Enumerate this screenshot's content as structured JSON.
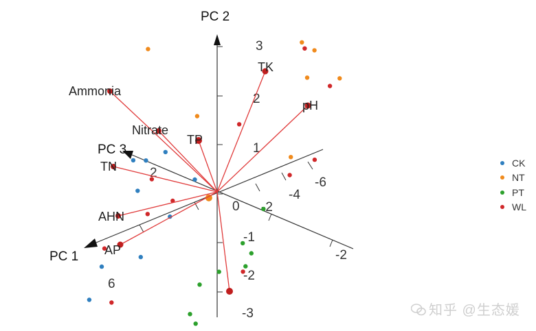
{
  "chart_data": {
    "type": "scatter",
    "subtype": "3d-pca-biplot",
    "axes": [
      {
        "name": "PC 1",
        "ticks": [
          "6",
          "2",
          "0",
          "-2"
        ]
      },
      {
        "name": "PC 2",
        "ticks": [
          "3",
          "2",
          "1",
          "0",
          "-1",
          "-2",
          "-3"
        ]
      },
      {
        "name": "PC 3",
        "ticks": [
          "2",
          "-2",
          "-4",
          "-6"
        ]
      }
    ],
    "legend": {
      "placement": "right",
      "entries": [
        {
          "name": "CK",
          "color": "#2f7fbf"
        },
        {
          "name": "NT",
          "color": "#f08a1c"
        },
        {
          "name": "PT",
          "color": "#2ca02c"
        },
        {
          "name": "WL",
          "color": "#d0282a"
        }
      ]
    },
    "loadings": [
      {
        "name": "TK"
      },
      {
        "name": "pH"
      },
      {
        "name": "Ammonia"
      },
      {
        "name": "Nitrate"
      },
      {
        "name": "TP"
      },
      {
        "name": "TN"
      },
      {
        "name": "AHN"
      },
      {
        "name": "AP"
      }
    ],
    "points": [
      {
        "group": "NT",
        "pc1": -3.1,
        "pc2": 2.4,
        "pc3": 6.2
      },
      {
        "group": "NT",
        "pc1": -1.3,
        "pc2": 1.7,
        "pc3": 7.5
      },
      {
        "group": "NT",
        "pc1": -1.0,
        "pc2": 0.9,
        "pc3": 3.4
      },
      {
        "group": "NT",
        "pc1": -3.2,
        "pc2": 1.6,
        "pc3": -0.1
      },
      {
        "group": "NT",
        "pc1": -2.3,
        "pc2": 2.7,
        "pc3": -1.5
      },
      {
        "group": "NT",
        "pc1": -2.4,
        "pc2": 2.6,
        "pc3": -2.2
      },
      {
        "group": "NT",
        "pc1": -2.5,
        "pc2": 2.2,
        "pc3": -3.8
      },
      {
        "group": "NT",
        "pc1": -1.8,
        "pc2": 0.5,
        "pc3": -1.7
      },
      {
        "group": "NT",
        "pc1": 0.2,
        "pc2": -0.1,
        "pc3": 0.2
      },
      {
        "group": "WL",
        "pc1": -2.3,
        "pc2": 2.6,
        "pc3": -1.7
      },
      {
        "group": "WL",
        "pc1": -2.2,
        "pc2": 2.1,
        "pc3": -3.7
      },
      {
        "group": "WL",
        "pc1": -1.7,
        "pc2": 0.7,
        "pc3": -3.6
      },
      {
        "group": "WL",
        "pc1": -1.0,
        "pc2": 1.1,
        "pc3": 0.4
      },
      {
        "group": "WL",
        "pc1": -1.0,
        "pc2": 0.5,
        "pc3": -3.2
      },
      {
        "group": "WL",
        "pc1": 1.7,
        "pc2": -0.6,
        "pc3": -5.2
      },
      {
        "group": "WL",
        "pc1": 1.2,
        "pc2": 0.0,
        "pc3": 0.8
      },
      {
        "group": "WL",
        "pc1": 1.5,
        "pc2": 0.4,
        "pc3": 1.7
      },
      {
        "group": "WL",
        "pc1": 1.6,
        "pc2": -0.3,
        "pc3": 1.8
      },
      {
        "group": "WL",
        "pc1": 2.4,
        "pc2": -1.0,
        "pc3": 3.3
      },
      {
        "group": "WL",
        "pc1": 3.8,
        "pc2": -2.2,
        "pc3": 0.9
      },
      {
        "group": "WL",
        "pc1": 2.7,
        "pc2": -1.9,
        "pc3": 2.2
      },
      {
        "group": "CK",
        "pc1": 0.8,
        "pc2": 0.4,
        "pc3": 3.5
      },
      {
        "group": "CK",
        "pc1": 0.5,
        "pc2": 0.6,
        "pc3": 2.7
      },
      {
        "group": "CK",
        "pc1": 0.6,
        "pc2": 0.2,
        "pc3": 4.8
      },
      {
        "group": "CK",
        "pc1": 1.2,
        "pc2": -0.1,
        "pc3": 3.3
      },
      {
        "group": "CK",
        "pc1": 0.3,
        "pc2": 0.2,
        "pc3": 1.0
      },
      {
        "group": "CK",
        "pc1": 1.3,
        "pc2": -0.3,
        "pc3": 0.8
      },
      {
        "group": "CK",
        "pc1": 2.1,
        "pc2": -1.0,
        "pc3": 1.3
      },
      {
        "group": "CK",
        "pc1": 2.6,
        "pc2": -1.3,
        "pc3": 3.1
      },
      {
        "group": "CK",
        "pc1": 3.2,
        "pc2": -1.8,
        "pc3": 2.8
      },
      {
        "group": "CK",
        "pc1": 2.6,
        "pc2": -2.1,
        "pc3": -2.0
      },
      {
        "group": "PT",
        "pc1": 0.1,
        "pc2": 0.1,
        "pc3": -3.5
      },
      {
        "group": "PT",
        "pc1": 1.3,
        "pc2": -1.0,
        "pc3": -2.7
      },
      {
        "group": "PT",
        "pc1": 0.9,
        "pc2": -0.4,
        "pc3": -3.6
      },
      {
        "group": "PT",
        "pc1": 1.0,
        "pc2": -0.8,
        "pc3": -4.0
      },
      {
        "group": "PT",
        "pc1": 1.6,
        "pc2": -0.2,
        "pc3": -5.6
      },
      {
        "group": "PT",
        "pc1": 2.6,
        "pc2": -1.5,
        "pc3": -3.2
      },
      {
        "group": "PT",
        "pc1": 2.7,
        "pc2": -1.6,
        "pc3": -3.8
      },
      {
        "group": "PT",
        "pc1": 2.0,
        "pc2": -1.1,
        "pc3": -2.7
      },
      {
        "group": "PT",
        "pc1": 2.8,
        "pc2": -1.9,
        "pc3": -6.1
      },
      {
        "group": "PT",
        "pc1": 3.8,
        "pc2": -2.4,
        "pc3": -4.7
      },
      {
        "group": "PT",
        "pc1": 3.4,
        "pc2": -2.1,
        "pc3": -4.0
      }
    ]
  },
  "watermark": {
    "text": "知乎 @生态媛"
  }
}
